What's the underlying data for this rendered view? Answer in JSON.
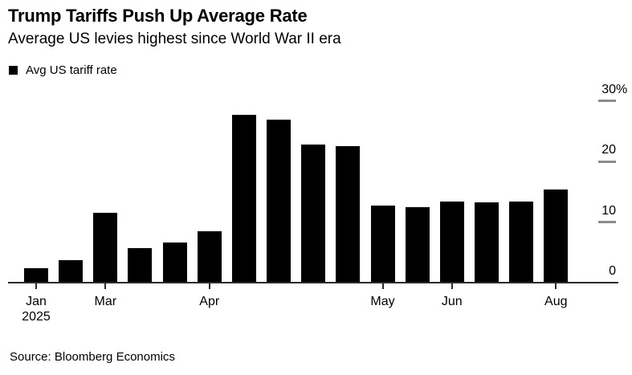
{
  "chart_data": {
    "type": "bar",
    "title": "Trump Tariffs Push Up Average Rate",
    "subtitle": "Average US levies highest since World War II era",
    "series_name": "Avg US tariff rate",
    "unit": "percent",
    "values": [
      2.2,
      3.6,
      11.4,
      5.5,
      6.5,
      8.4,
      27.5,
      26.8,
      22.6,
      22.4,
      12.6,
      12.3,
      13.2,
      13.1,
      13.2,
      15.2
    ],
    "x_axis": {
      "ticks": [
        {
          "label": "Jan",
          "sublabel": "2025",
          "bar_index": 0
        },
        {
          "label": "Mar",
          "bar_index": 2
        },
        {
          "label": "Apr",
          "bar_index": 5
        },
        {
          "label": "May",
          "bar_index": 10
        },
        {
          "label": "Jun",
          "bar_index": 12
        },
        {
          "label": "Aug",
          "bar_index": 15
        }
      ]
    },
    "y_axis": {
      "ticks": [
        {
          "value": 0,
          "label": "0",
          "suffix": ""
        },
        {
          "value": 10,
          "label": "10",
          "suffix": ""
        },
        {
          "value": 20,
          "label": "20",
          "suffix": ""
        },
        {
          "value": 30,
          "label": "30",
          "suffix": "%"
        }
      ],
      "range": [
        0,
        30
      ],
      "position": "right"
    },
    "grid": false,
    "legend_position": "top-left",
    "bar_color": "#000000",
    "axis_line_color": "#2b2b2b",
    "tick_dash_color": "#8c8c8c",
    "source": "Source: Bloomberg Economics"
  }
}
